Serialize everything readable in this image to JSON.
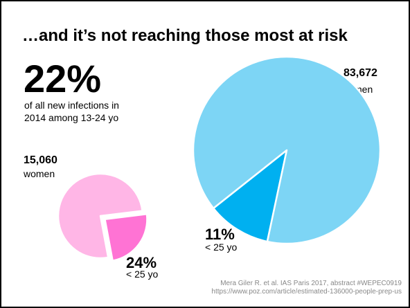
{
  "slide": {
    "title": "…and it’s not reaching those most at risk",
    "headline_stat": "22%",
    "headline_text_line1": "of all new infections in",
    "headline_text_line2": "2014 among 13-24 yo",
    "source_line1": "Mera Giler R. et al. IAS Paris 2017, abstract #WEPEC0919",
    "source_line2": "https://www.poz.com/article/estimated-136000-people-prep-us"
  },
  "chart_data": [
    {
      "type": "pie",
      "title": "",
      "total_label": "15,060",
      "group_label": "women",
      "slices": [
        {
          "name": "< 25 yo",
          "value": 24,
          "color": "#ff73d4",
          "exploded": true
        },
        {
          "name": "",
          "value": 76,
          "color": "#ffb6e6",
          "exploded": false
        }
      ],
      "highlight_percent_label": "24%",
      "highlight_sub_label": "< 25 yo"
    },
    {
      "type": "pie",
      "title": "",
      "total_label": "83,672",
      "group_label": "men",
      "slices": [
        {
          "name": "< 25 yo",
          "value": 11,
          "color": "#00b0f0",
          "exploded": false
        },
        {
          "name": "",
          "value": 89,
          "color": "#7dd5f5",
          "exploded": false
        }
      ],
      "highlight_percent_label": "11%",
      "highlight_sub_label": "< 25 yo"
    }
  ]
}
